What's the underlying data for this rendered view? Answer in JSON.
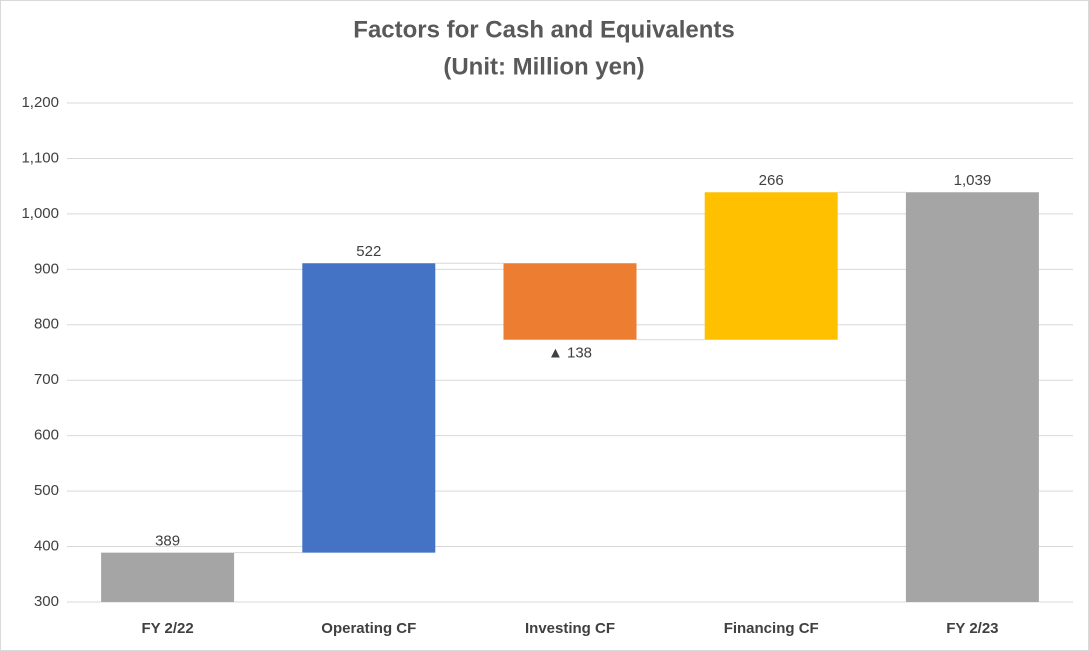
{
  "chart_data": {
    "type": "waterfall",
    "title": "Factors for Cash and Equivalents",
    "subtitle": "(Unit: Million yen)",
    "categories": [
      "FY 2/22",
      "Operating CF",
      "Investing CF",
      "Financing CF",
      "FY 2/23"
    ],
    "values": [
      389,
      522,
      -138,
      266,
      1039
    ],
    "value_labels": [
      "389",
      "522",
      "▲ 138",
      "266",
      "1,039"
    ],
    "measures": [
      "absolute",
      "relative",
      "relative",
      "relative",
      "total"
    ],
    "colors": [
      "#a5a5a5",
      "#4472c4",
      "#ed7d31",
      "#ffc000",
      "#a5a5a5"
    ],
    "ylim": [
      300,
      1200
    ],
    "yticks": [
      300,
      400,
      500,
      600,
      700,
      800,
      900,
      {
        "value": 1000,
        "label": "1,000"
      },
      {
        "value": 1100,
        "label": "1,100"
      },
      {
        "value": 1200,
        "label": "1,200"
      }
    ],
    "grid": true
  }
}
